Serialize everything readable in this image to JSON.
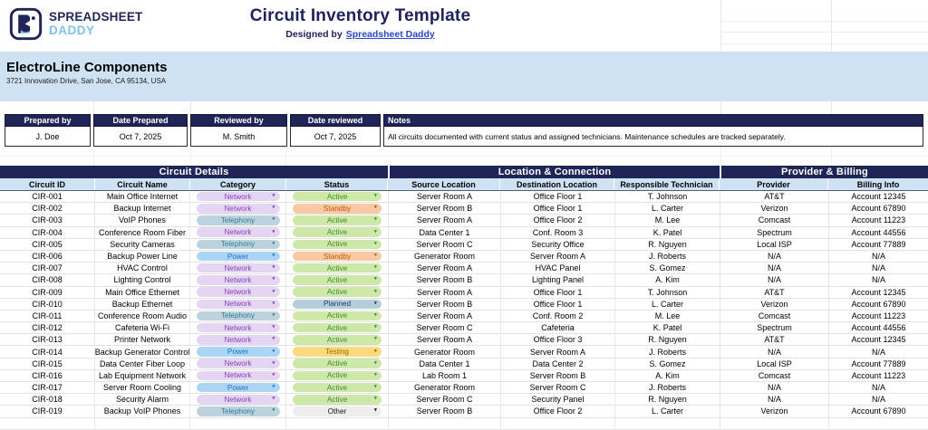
{
  "header": {
    "logo_line1": "SPREADSHEET",
    "logo_line2": "DADDY",
    "title": "Circuit Inventory Template",
    "designed_by_prefix": "Designed by",
    "designed_by_link": "Spreadsheet Daddy"
  },
  "company": {
    "name": "ElectroLine Components",
    "address": "3721 Innovation Drive, San Jose, CA 95134, USA"
  },
  "info": {
    "headers": [
      "Prepared by",
      "Date Prepared",
      "Reviewed by",
      "Date reviewed",
      "Notes"
    ],
    "prepared_by": "J. Doe",
    "date_prepared": "Oct 7, 2025",
    "reviewed_by": "M. Smith",
    "date_reviewed": "Oct 7, 2025",
    "notes": "All circuits documented with current status and assigned technicians. Maintenance schedules are tracked separately."
  },
  "table": {
    "groups": [
      "Circuit Details",
      "Location & Connection",
      "Provider & Billing"
    ],
    "columns": [
      "Circuit ID",
      "Circuit Name",
      "Category",
      "Status",
      "Source Location",
      "Destination Location",
      "Responsible Technician",
      "Provider",
      "Billing Info"
    ],
    "rows": [
      {
        "id": "CIR-001",
        "name": "Main Office Internet",
        "category": "Network",
        "status": "Active",
        "source": "Server Room A",
        "destination": "Office Floor 1",
        "technician": "T. Johnson",
        "provider": "AT&T",
        "billing": "Account 12345"
      },
      {
        "id": "CIR-002",
        "name": "Backup Internet",
        "category": "Network",
        "status": "Standby",
        "source": "Server Room B",
        "destination": "Office Floor 1",
        "technician": "L. Carter",
        "provider": "Verizon",
        "billing": "Account 67890"
      },
      {
        "id": "CIR-003",
        "name": "VoIP Phones",
        "category": "Telephony",
        "status": "Active",
        "source": "Server Room A",
        "destination": "Office Floor 2",
        "technician": "M. Lee",
        "provider": "Comcast",
        "billing": "Account 11223"
      },
      {
        "id": "CIR-004",
        "name": "Conference Room Fiber",
        "category": "Network",
        "status": "Active",
        "source": "Data Center 1",
        "destination": "Conf. Room 3",
        "technician": "K. Patel",
        "provider": "Spectrum",
        "billing": "Account 44556"
      },
      {
        "id": "CIR-005",
        "name": "Security Cameras",
        "category": "Telephony",
        "status": "Active",
        "source": "Server Room C",
        "destination": "Security Office",
        "technician": "R. Nguyen",
        "provider": "Local ISP",
        "billing": "Account 77889"
      },
      {
        "id": "CIR-006",
        "name": "Backup Power Line",
        "category": "Power",
        "status": "Standby",
        "source": "Generator Room",
        "destination": "Server Room A",
        "technician": "J. Roberts",
        "provider": "N/A",
        "billing": "N/A"
      },
      {
        "id": "CIR-007",
        "name": "HVAC Control",
        "category": "Network",
        "status": "Active",
        "source": "Server Room A",
        "destination": "HVAC Panel",
        "technician": "S. Gomez",
        "provider": "N/A",
        "billing": "N/A"
      },
      {
        "id": "CIR-008",
        "name": "Lighting Control",
        "category": "Network",
        "status": "Active",
        "source": "Server Room B",
        "destination": "Lighting Panel",
        "technician": "A. Kim",
        "provider": "N/A",
        "billing": "N/A"
      },
      {
        "id": "CIR-009",
        "name": "Main Office Ethernet",
        "category": "Network",
        "status": "Active",
        "source": "Server Room A",
        "destination": "Office Floor 1",
        "technician": "T. Johnson",
        "provider": "AT&T",
        "billing": "Account 12345"
      },
      {
        "id": "CIR-010",
        "name": "Backup Ethernet",
        "category": "Network",
        "status": "Planned",
        "source": "Server Room B",
        "destination": "Office Floor 1",
        "technician": "L. Carter",
        "provider": "Verizon",
        "billing": "Account 67890"
      },
      {
        "id": "CIR-011",
        "name": "Conference Room Audio",
        "category": "Telephony",
        "status": "Active",
        "source": "Server Room A",
        "destination": "Conf. Room 2",
        "technician": "M. Lee",
        "provider": "Comcast",
        "billing": "Account 11223"
      },
      {
        "id": "CIR-012",
        "name": "Cafeteria Wi-Fi",
        "category": "Network",
        "status": "Active",
        "source": "Server Room C",
        "destination": "Cafeteria",
        "technician": "K. Patel",
        "provider": "Spectrum",
        "billing": "Account 44556"
      },
      {
        "id": "CIR-013",
        "name": "Printer Network",
        "category": "Network",
        "status": "Active",
        "source": "Server Room A",
        "destination": "Office Floor 3",
        "technician": "R. Nguyen",
        "provider": "AT&T",
        "billing": "Account 12345"
      },
      {
        "id": "CIR-014",
        "name": "Backup Generator Control",
        "category": "Power",
        "status": "Testing",
        "source": "Generator Room",
        "destination": "Server Room A",
        "technician": "J. Roberts",
        "provider": "N/A",
        "billing": "N/A"
      },
      {
        "id": "CIR-015",
        "name": "Data Center Fiber Loop",
        "category": "Network",
        "status": "Active",
        "source": "Data Center 1",
        "destination": "Data Center 2",
        "technician": "S. Gomez",
        "provider": "Local ISP",
        "billing": "Account 77889"
      },
      {
        "id": "CIR-016",
        "name": "Lab Equipment Network",
        "category": "Network",
        "status": "Active",
        "source": "Lab Room 1",
        "destination": "Server Room B",
        "technician": "A. Kim",
        "provider": "Comcast",
        "billing": "Account 11223"
      },
      {
        "id": "CIR-017",
        "name": "Server Room Cooling",
        "category": "Power",
        "status": "Active",
        "source": "Generator Room",
        "destination": "Server Room C",
        "technician": "J. Roberts",
        "provider": "N/A",
        "billing": "N/A"
      },
      {
        "id": "CIR-018",
        "name": "Security Alarm",
        "category": "Network",
        "status": "Active",
        "source": "Server Room C",
        "destination": "Security Panel",
        "technician": "R. Nguyen",
        "provider": "N/A",
        "billing": "N/A"
      },
      {
        "id": "CIR-019",
        "name": "Backup VoIP Phones",
        "category": "Telephony",
        "status": "Other",
        "source": "Server Room B",
        "destination": "Office Floor 2",
        "technician": "L. Carter",
        "provider": "Verizon",
        "billing": "Account 67890"
      }
    ]
  },
  "pill_styles": {
    "category": {
      "Network": {
        "bg": "#E4D6F2",
        "fg": "#8643B8"
      },
      "Telephony": {
        "bg": "#BCD2DD",
        "fg": "#2F7F96"
      },
      "Power": {
        "bg": "#ABD5F4",
        "fg": "#2071C7"
      }
    },
    "status": {
      "Active": {
        "bg": "#CDE8A9",
        "fg": "#44892E"
      },
      "Standby": {
        "bg": "#F8C9A2",
        "fg": "#C2590A"
      },
      "Planned": {
        "bg": "#B3CEDD",
        "fg": "#233D6B"
      },
      "Testing": {
        "bg": "#FBDA7D",
        "fg": "#8F6E00"
      },
      "Other": {
        "bg": "#EDEDED",
        "fg": "#111111"
      }
    }
  },
  "icons": {
    "dropdown_arrow": "▾"
  },
  "colors": {
    "navy": "#202557",
    "header_blue": "#CFE2F3",
    "link_blue": "#2945CC",
    "logo_light_blue": "#7EC3E6"
  }
}
